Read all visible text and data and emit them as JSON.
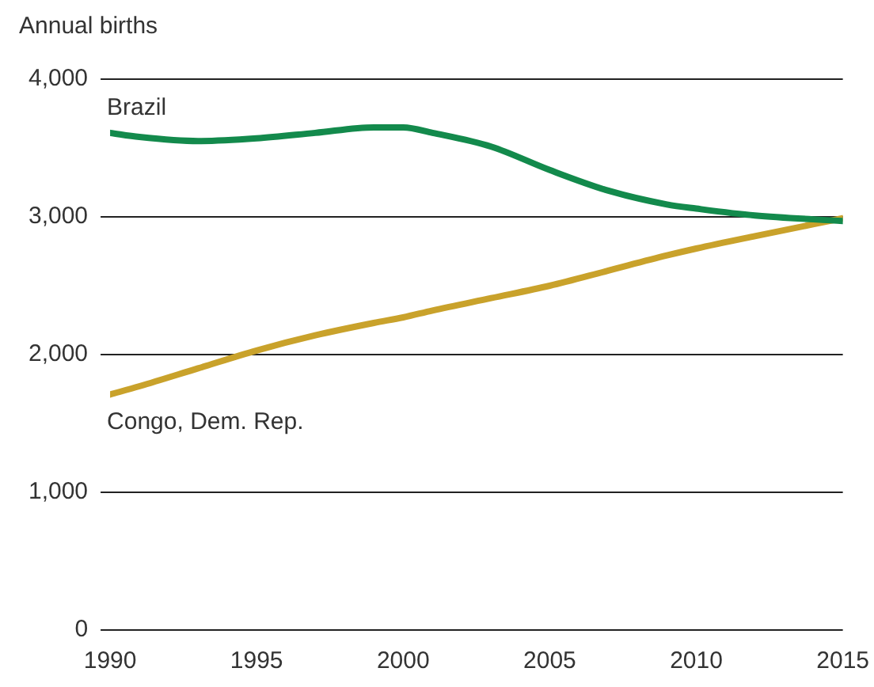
{
  "chart_data": {
    "type": "line",
    "ylabel": "Annual births",
    "x": [
      1990,
      1991,
      1993,
      1995,
      1997,
      1999,
      2000,
      2001,
      2003,
      2005,
      2007,
      2009,
      2010,
      2012,
      2015
    ],
    "series": [
      {
        "name": "Brazil",
        "color": "#138a4c",
        "values": [
          3610,
          3580,
          3550,
          3570,
          3610,
          3650,
          3650,
          3610,
          3510,
          3340,
          3190,
          3090,
          3060,
          3010,
          2970
        ]
      },
      {
        "name": "Congo, Dem. Rep.",
        "color": "#c9a22b",
        "values": [
          1710,
          1770,
          1900,
          2030,
          2140,
          2230,
          2270,
          2320,
          2410,
          2500,
          2610,
          2720,
          2770,
          2860,
          2990
        ]
      }
    ],
    "xlim": [
      1990,
      2015
    ],
    "xticks": [
      1990,
      1995,
      2000,
      2005,
      2010,
      2015
    ],
    "ylim": [
      0,
      4000
    ],
    "yticks": [
      {
        "value": 0,
        "label": "0"
      },
      {
        "value": 1000,
        "label": "1,000"
      },
      {
        "value": 2000,
        "label": "2,000"
      },
      {
        "value": 3000,
        "label": "3,000"
      },
      {
        "value": 4000,
        "label": "4,000"
      }
    ],
    "grid": "y",
    "legend": false,
    "line_style": "solid",
    "marker": "none"
  }
}
